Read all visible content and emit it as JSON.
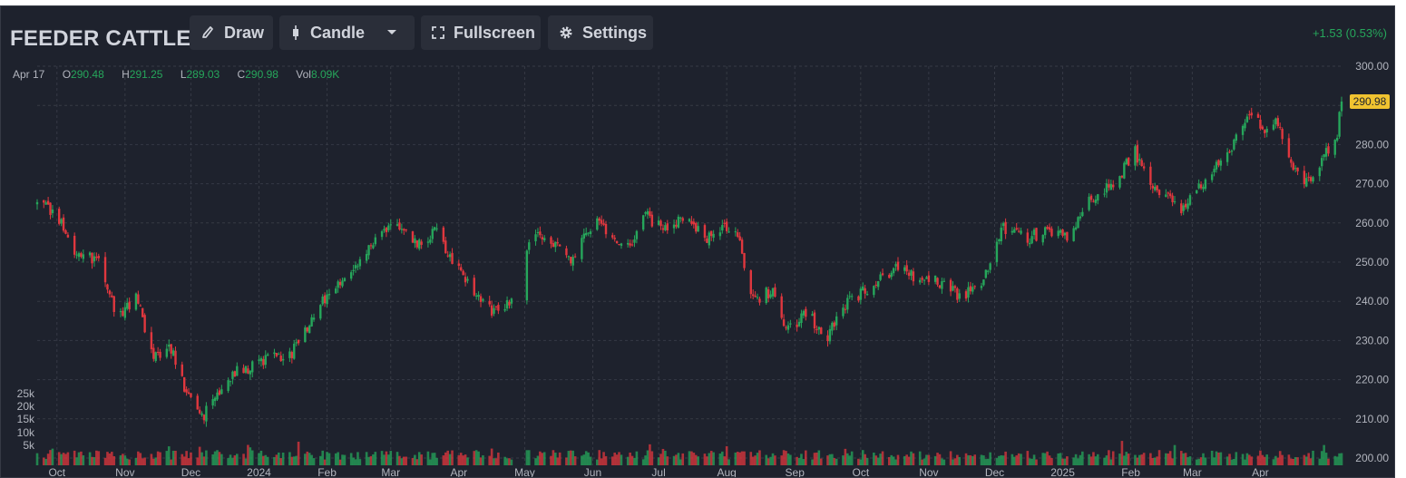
{
  "header": {
    "symbol": "FEEDER CATTLE",
    "change": "+1.53 (0.53%)",
    "buttons": {
      "draw": "Draw",
      "candle": "Candle",
      "fullscreen": "Fullscreen",
      "settings": "Settings"
    }
  },
  "ohlc": {
    "date": "Apr 17",
    "open_label": "O",
    "open": "290.48",
    "high_label": "H",
    "high": "291.25",
    "low_label": "L",
    "low": "289.03",
    "close_label": "C",
    "close": "290.98",
    "vol_label": "Vol",
    "vol": "8.09K"
  },
  "colors": {
    "up": "#26a65b",
    "down": "#e0373e",
    "background": "#1e222d",
    "grid": "#363a45",
    "axis_text": "#b2b5be",
    "last_price_bg": "#f0c330"
  },
  "icons": {
    "draw": "brush-icon",
    "candle": "candle-icon",
    "dropdown": "chevron-down-icon",
    "fullscreen": "fullscreen-icon",
    "settings": "gear-icon"
  },
  "chart_data": {
    "type": "candlestick",
    "y_ticks": [
      "300.00",
      "290.00",
      "280.00",
      "270.00",
      "260.00",
      "250.00",
      "240.00",
      "230.00",
      "220.00",
      "210.00",
      "200.00"
    ],
    "ylim": [
      200,
      300
    ],
    "last_price": "290.98",
    "volume_ticks": [
      "25k",
      "20k",
      "15k",
      "10k",
      "5k"
    ],
    "x_ticks": [
      "Oct",
      "Nov",
      "Dec",
      "2024",
      "Feb",
      "Mar",
      "Apr",
      "May",
      "Jun",
      "Jul",
      "Aug",
      "Sep",
      "Oct",
      "Nov",
      "Dec",
      "2025",
      "Feb",
      "Mar",
      "Apr"
    ],
    "grid": true,
    "close_anchors": [
      [
        "2023-09-22",
        265
      ],
      [
        "2023-10-01",
        262
      ],
      [
        "2023-10-10",
        252
      ],
      [
        "2023-10-20",
        251
      ],
      [
        "2023-10-28",
        236
      ],
      [
        "2023-11-06",
        241
      ],
      [
        "2023-11-14",
        226
      ],
      [
        "2023-11-22",
        228
      ],
      [
        "2023-11-30",
        215
      ],
      [
        "2023-12-06",
        210
      ],
      [
        "2023-12-15",
        218
      ],
      [
        "2023-12-22",
        222
      ],
      [
        "2024-01-04",
        225
      ],
      [
        "2024-01-16",
        227
      ],
      [
        "2024-01-30",
        240
      ],
      [
        "2024-02-12",
        248
      ],
      [
        "2024-02-26",
        259
      ],
      [
        "2024-03-06",
        258
      ],
      [
        "2024-03-15",
        254
      ],
      [
        "2024-03-22",
        259
      ],
      [
        "2024-03-29",
        250
      ],
      [
        "2024-04-08",
        242
      ],
      [
        "2024-04-16",
        237
      ],
      [
        "2024-04-24",
        240
      ],
      [
        "2024-05-04",
        258
      ],
      [
        "2024-05-14",
        254
      ],
      [
        "2024-05-22",
        251
      ],
      [
        "2024-06-03",
        262
      ],
      [
        "2024-06-10",
        256
      ],
      [
        "2024-06-18",
        255
      ],
      [
        "2024-06-25",
        262
      ],
      [
        "2024-07-03",
        258
      ],
      [
        "2024-07-12",
        262
      ],
      [
        "2024-07-22",
        256
      ],
      [
        "2024-07-30",
        259
      ],
      [
        "2024-08-06",
        257
      ],
      [
        "2024-08-13",
        240
      ],
      [
        "2024-08-22",
        243
      ],
      [
        "2024-08-28",
        232
      ],
      [
        "2024-09-06",
        237
      ],
      [
        "2024-09-16",
        231
      ],
      [
        "2024-09-25",
        240
      ],
      [
        "2024-10-04",
        243
      ],
      [
        "2024-10-18",
        249
      ],
      [
        "2024-10-28",
        245
      ],
      [
        "2024-11-07",
        245
      ],
      [
        "2024-11-15",
        241
      ],
      [
        "2024-11-25",
        244
      ],
      [
        "2024-12-05",
        259
      ],
      [
        "2024-12-16",
        256
      ],
      [
        "2024-12-24",
        258
      ],
      [
        "2025-01-03",
        256
      ],
      [
        "2025-01-14",
        266
      ],
      [
        "2025-01-24",
        270
      ],
      [
        "2025-02-03",
        278
      ],
      [
        "2025-02-12",
        268
      ],
      [
        "2025-02-24",
        264
      ],
      [
        "2025-03-06",
        270
      ],
      [
        "2025-03-14",
        276
      ],
      [
        "2025-03-20",
        280
      ],
      [
        "2025-03-28",
        288
      ],
      [
        "2025-04-03",
        284
      ],
      [
        "2025-04-09",
        286
      ],
      [
        "2025-04-15",
        274
      ],
      [
        "2025-04-22",
        270
      ],
      [
        "2025-04-29",
        276
      ],
      [
        "2025-05-06",
        283
      ],
      [
        "2025-05-08",
        290.98
      ]
    ],
    "data_gap": [
      "2024-04-25",
      "2024-05-02"
    ]
  }
}
